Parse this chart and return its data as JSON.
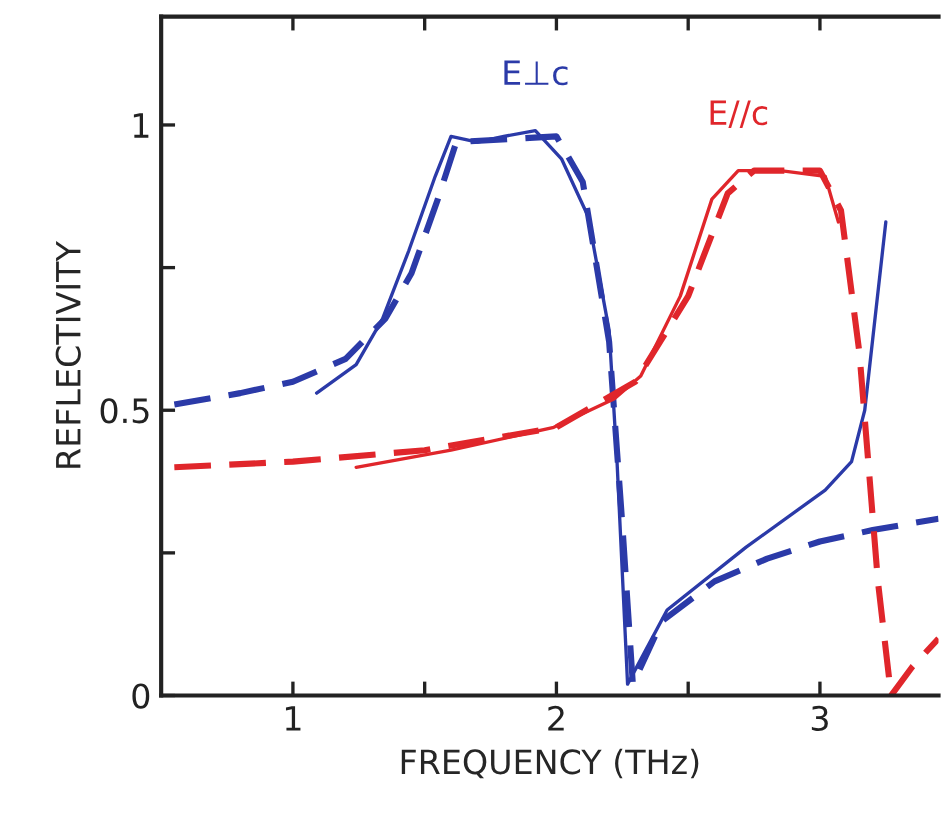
{
  "chart_data": {
    "type": "line",
    "xlabel": "FREQUENCY (THz)",
    "ylabel": "REFLECTIVITY",
    "xlim": [
      0.5,
      3.45
    ],
    "ylim": [
      0,
      1.19
    ],
    "xticks": [
      1,
      {
        "value": 1.5,
        "label": null
      },
      2,
      {
        "value": 2.5,
        "label": null
      },
      3
    ],
    "yticks": [
      0,
      {
        "value": 0.25,
        "label": null
      },
      0.5,
      {
        "value": 0.75,
        "label": null
      },
      1
    ],
    "grid": false,
    "legend": false,
    "marker": "none",
    "series": [
      {
        "name": "E⊥c",
        "color": "#2b3aa8",
        "line_style": "solid",
        "x": [
          1.09,
          1.24,
          1.34,
          1.44,
          1.54,
          1.6,
          1.7,
          1.8,
          1.92,
          2.02,
          2.12,
          2.2,
          2.23,
          2.27,
          2.42,
          2.72,
          3.02,
          3.12,
          3.17,
          3.25
        ],
        "values": [
          0.53,
          0.58,
          0.66,
          0.78,
          0.91,
          0.98,
          0.97,
          0.98,
          0.99,
          0.94,
          0.84,
          0.64,
          0.41,
          0.02,
          0.15,
          0.26,
          0.36,
          0.41,
          0.5,
          0.83
        ]
      },
      {
        "color": "#2b3aa8",
        "line_style": "dashed",
        "x": [
          0.55,
          0.8,
          1.0,
          1.2,
          1.35,
          1.45,
          1.55,
          1.62,
          2.0,
          2.1,
          2.2,
          2.25,
          2.29,
          2.4,
          2.6,
          2.8,
          3.0,
          3.2,
          3.45
        ],
        "values": [
          0.51,
          0.53,
          0.55,
          0.59,
          0.66,
          0.74,
          0.87,
          0.97,
          0.98,
          0.9,
          0.62,
          0.3,
          0.02,
          0.13,
          0.2,
          0.24,
          0.27,
          0.29,
          0.31
        ]
      },
      {
        "name": "E//c",
        "color": "#e0262b",
        "line_style": "solid",
        "x": [
          1.24,
          1.6,
          1.99,
          2.22,
          2.32,
          2.47,
          2.59,
          2.69,
          2.85,
          3.02,
          3.07
        ],
        "values": [
          0.4,
          0.43,
          0.47,
          0.52,
          0.56,
          0.7,
          0.87,
          0.92,
          0.92,
          0.91,
          0.83
        ]
      },
      {
        "color": "#e0262b",
        "line_style": "dashed",
        "x": [
          0.55,
          1.0,
          1.5,
          2.0,
          2.3,
          2.5,
          2.65,
          2.75,
          3.0,
          3.08,
          3.15,
          3.22,
          3.27,
          3.35,
          3.45
        ],
        "values": [
          0.4,
          0.41,
          0.43,
          0.47,
          0.55,
          0.7,
          0.88,
          0.92,
          0.92,
          0.85,
          0.6,
          0.2,
          0.0,
          0.05,
          0.1
        ]
      }
    ]
  }
}
